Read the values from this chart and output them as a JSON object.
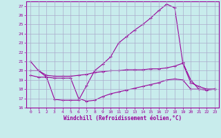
{
  "background_color": "#c8ecec",
  "grid_color": "#aaaacc",
  "line_color": "#990099",
  "xlabel": "Windchill (Refroidissement éolien,°C)",
  "ylabel_ticks": [
    16,
    17,
    18,
    19,
    20,
    21,
    22,
    23,
    24,
    25,
    26,
    27
  ],
  "xticks": [
    0,
    1,
    2,
    3,
    4,
    5,
    6,
    7,
    8,
    9,
    10,
    11,
    12,
    13,
    14,
    15,
    16,
    17,
    18,
    19,
    20,
    21,
    22,
    23
  ],
  "xlim": [
    -0.5,
    23.5
  ],
  "ylim": [
    16,
    27.5
  ],
  "line1_x": [
    0,
    1,
    2,
    3,
    4,
    5,
    6,
    7,
    8,
    9,
    10,
    11,
    12,
    13,
    14,
    15,
    16,
    17,
    18,
    19,
    20,
    21,
    22,
    23
  ],
  "line1_y": [
    21.0,
    20.0,
    19.3,
    16.9,
    16.8,
    16.8,
    16.8,
    18.4,
    20.0,
    20.7,
    21.5,
    23.0,
    23.7,
    24.4,
    25.0,
    25.7,
    26.5,
    27.2,
    26.8,
    20.9,
    19.0,
    18.0,
    17.9,
    18.0
  ],
  "line2_x": [
    0,
    1,
    2,
    3,
    4,
    5,
    6,
    7,
    8,
    9,
    10,
    11,
    12,
    13,
    14,
    15,
    16,
    17,
    18,
    19,
    20,
    21,
    22,
    23
  ],
  "line2_y": [
    20.0,
    20.0,
    19.5,
    19.4,
    19.4,
    19.4,
    19.5,
    19.6,
    19.8,
    19.9,
    20.0,
    20.0,
    20.1,
    20.1,
    20.1,
    20.2,
    20.2,
    20.3,
    20.5,
    20.8,
    18.7,
    18.3,
    18.0,
    18.0
  ],
  "line3_x": [
    0,
    1,
    2,
    3,
    4,
    5,
    6,
    7,
    8,
    9,
    10,
    11,
    12,
    13,
    14,
    15,
    16,
    17,
    18,
    19,
    20,
    21,
    22,
    23
  ],
  "line3_y": [
    19.5,
    19.3,
    19.3,
    19.2,
    19.2,
    19.2,
    17.0,
    16.7,
    16.8,
    17.2,
    17.5,
    17.7,
    17.9,
    18.1,
    18.3,
    18.5,
    18.7,
    19.0,
    19.1,
    19.0,
    18.0,
    18.0,
    18.0,
    18.0
  ]
}
